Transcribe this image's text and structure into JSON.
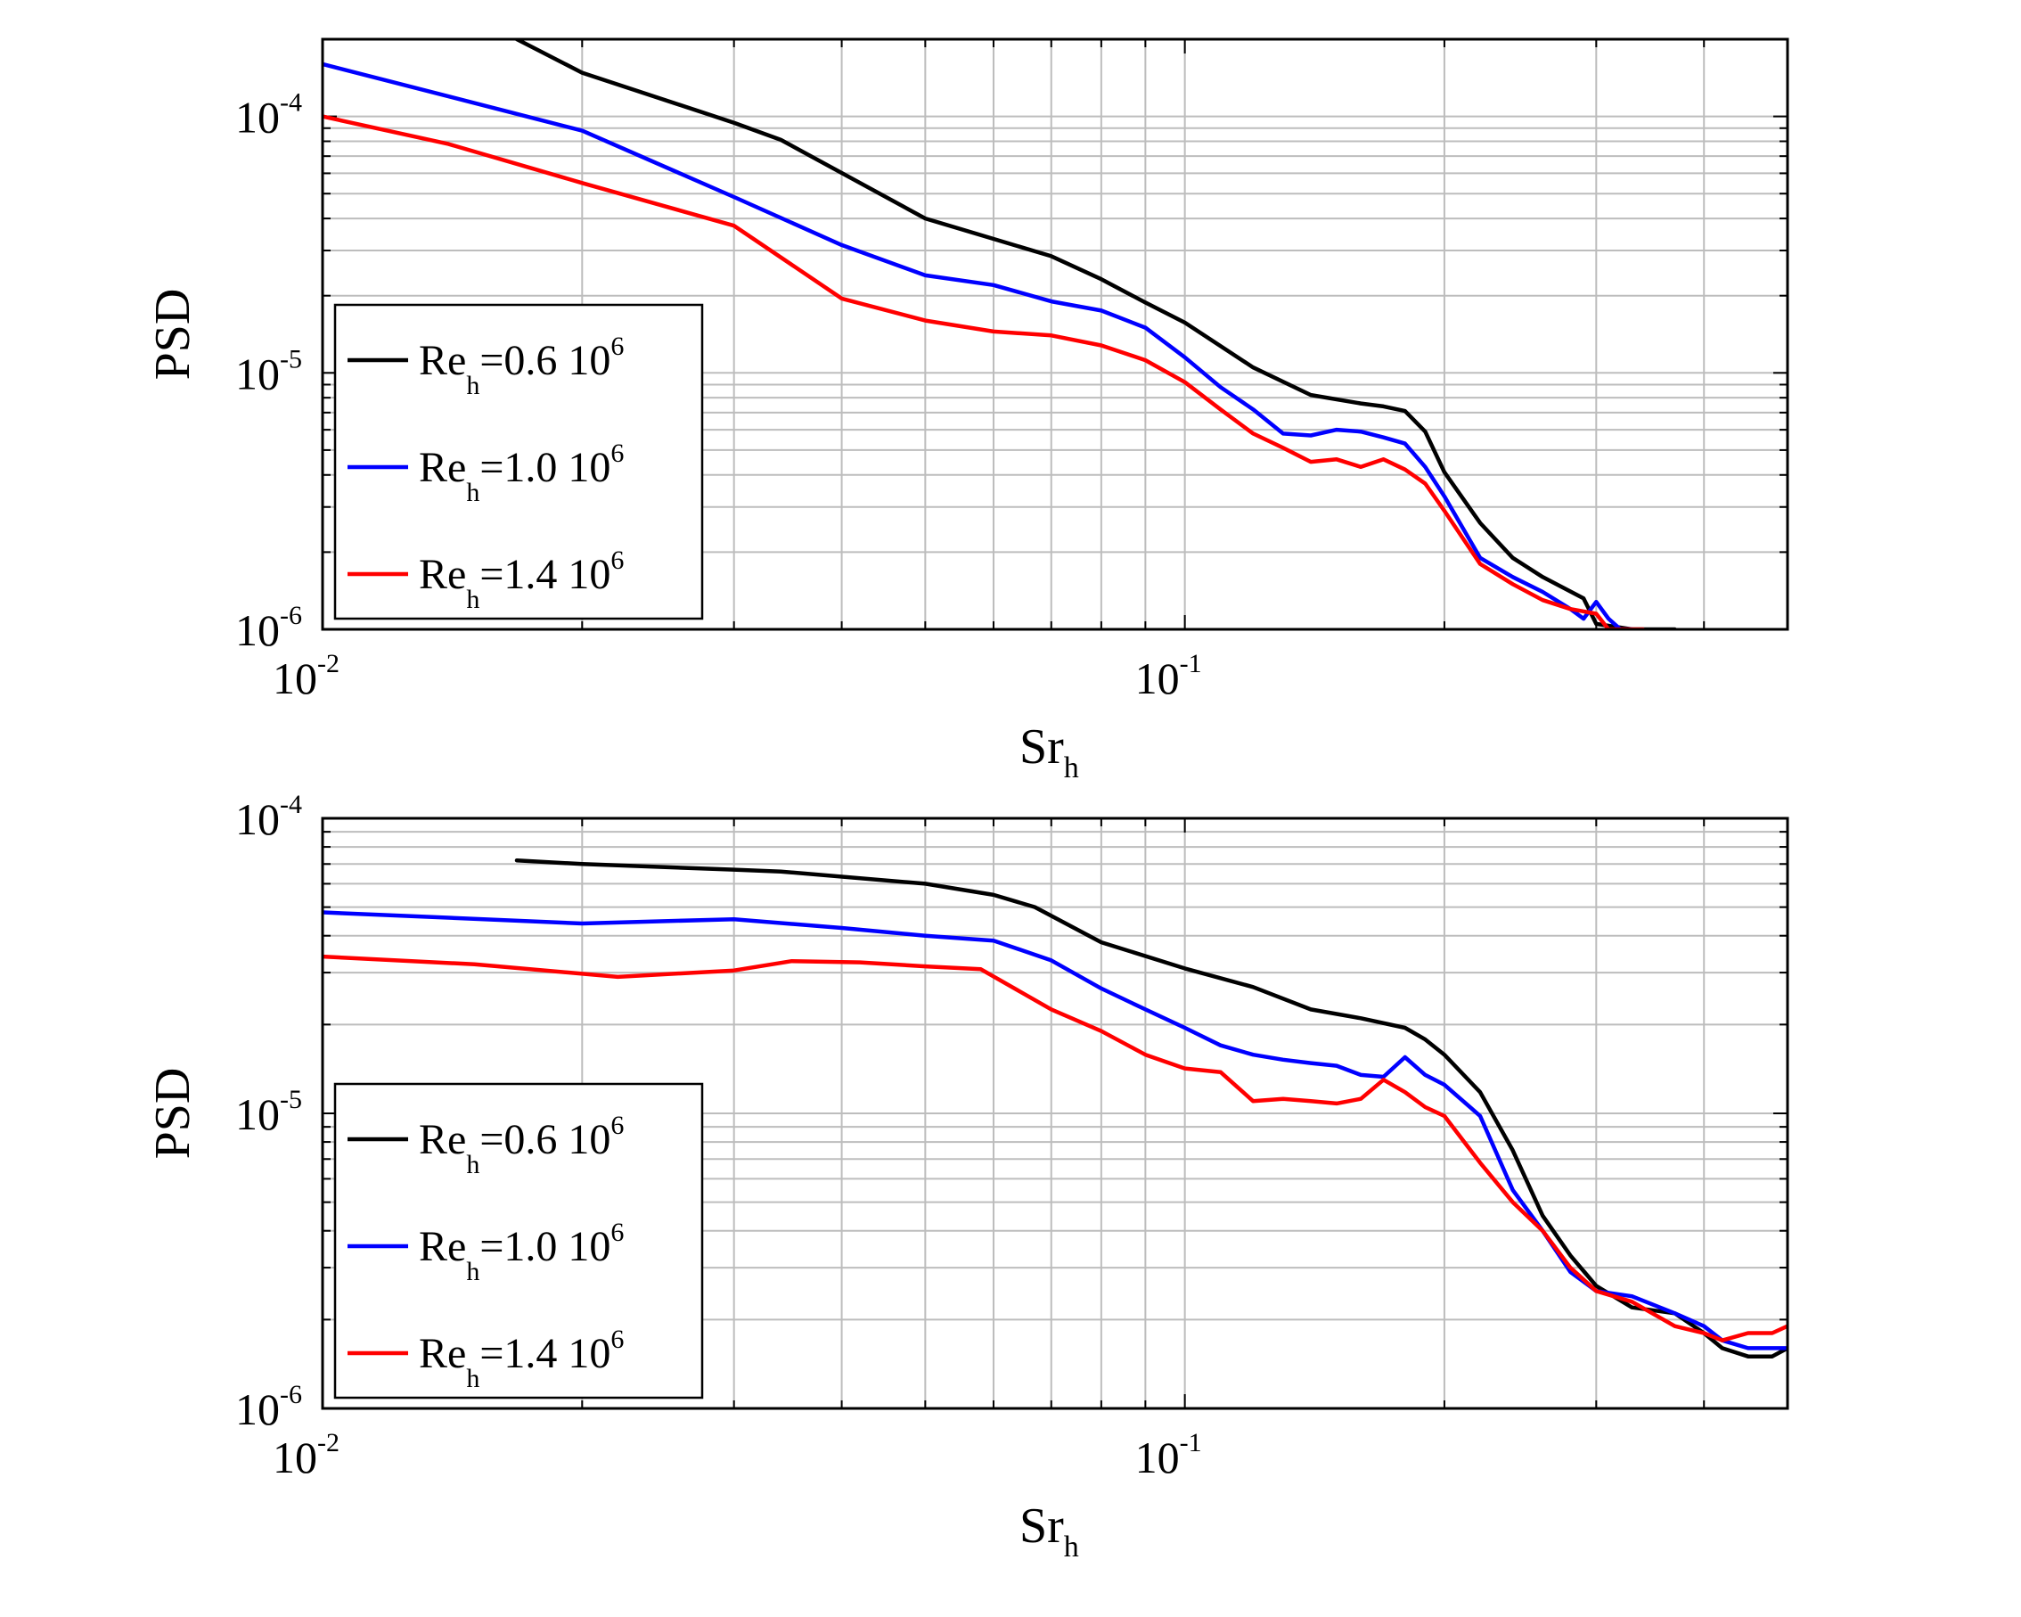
{
  "chart_data": [
    {
      "type": "line",
      "xscale": "log",
      "yscale": "log",
      "xlim": [
        0.01,
        0.5
      ],
      "ylim": [
        1e-06,
        0.0002
      ],
      "xlabel": "Sr",
      "xlabel_sub": "h",
      "ylabel": "PSD",
      "grid": true,
      "legend": "bottom-left",
      "xticks": [
        {
          "value": 0.01,
          "base": "10",
          "exp": "-2"
        },
        {
          "value": 0.1,
          "base": "10",
          "exp": "-1"
        }
      ],
      "yticks": [
        {
          "value": 0.0001,
          "base": "10",
          "exp": "-4"
        },
        {
          "value": 1e-05,
          "base": "10",
          "exp": "-5"
        },
        {
          "value": 1e-06,
          "base": "10",
          "exp": "-6"
        }
      ],
      "series": [
        {
          "name": "Re_h=0.6 10^6",
          "label_main": "Re",
          "label_sub": "h",
          "label_rest": "=0.6 10",
          "label_sup": "6",
          "color": "#000000",
          "x": [
            0.0168,
            0.02,
            0.03,
            0.034,
            0.05,
            0.07,
            0.08,
            0.09,
            0.1,
            0.12,
            0.14,
            0.16,
            0.17,
            0.18,
            0.19,
            0.2,
            0.22,
            0.24,
            0.26,
            0.29,
            0.3,
            0.33,
            0.37
          ],
          "y": [
            0.0002,
            0.000148,
            9.45e-05,
            8.1e-05,
            4e-05,
            2.85e-05,
            2.32e-05,
            1.88e-05,
            1.57e-05,
            1.05e-05,
            8.2e-06,
            7.6e-06,
            7.4e-06,
            7.1e-06,
            5.9e-06,
            4.1e-06,
            2.6e-06,
            1.9e-06,
            1.6e-06,
            1.32e-06,
            1.05e-06,
            1e-06,
            1e-06
          ]
        },
        {
          "name": "Re_h=1.0 10^6",
          "label_main": "Re",
          "label_sub": "h",
          "label_rest": "=1.0 10",
          "label_sup": "6",
          "color": "#0000ff",
          "x": [
            0.01,
            0.02,
            0.03,
            0.04,
            0.05,
            0.06,
            0.07,
            0.08,
            0.09,
            0.1,
            0.11,
            0.12,
            0.13,
            0.14,
            0.15,
            0.16,
            0.17,
            0.18,
            0.19,
            0.2,
            0.22,
            0.24,
            0.26,
            0.28,
            0.29,
            0.3,
            0.31,
            0.32,
            0.33
          ],
          "y": [
            0.00016,
            8.8e-05,
            4.85e-05,
            3.15e-05,
            2.4e-05,
            2.2e-05,
            1.9e-05,
            1.75e-05,
            1.5e-05,
            1.15e-05,
            8.8e-06,
            7.2e-06,
            5.8e-06,
            5.7e-06,
            6e-06,
            5.9e-06,
            5.6e-06,
            5.3e-06,
            4.3e-06,
            3.3e-06,
            1.9e-06,
            1.6e-06,
            1.4e-06,
            1.2e-06,
            1.1e-06,
            1.28e-06,
            1.1e-06,
            1e-06,
            1e-06
          ]
        },
        {
          "name": "Re_h=1.4 10^6",
          "label_main": "Re",
          "label_sub": "h",
          "label_rest": "=1.4 10",
          "label_sup": "6",
          "color": "#ff0000",
          "x": [
            0.01,
            0.014,
            0.02,
            0.03,
            0.04,
            0.05,
            0.06,
            0.07,
            0.08,
            0.09,
            0.1,
            0.11,
            0.12,
            0.13,
            0.14,
            0.15,
            0.16,
            0.17,
            0.18,
            0.19,
            0.2,
            0.22,
            0.24,
            0.26,
            0.28,
            0.3,
            0.31,
            0.32,
            0.33,
            0.34
          ],
          "y": [
            0.0001,
            7.8e-05,
            5.5e-05,
            3.75e-05,
            1.95e-05,
            1.6e-05,
            1.45e-05,
            1.4e-05,
            1.28e-05,
            1.12e-05,
            9.2e-06,
            7.2e-06,
            5.8e-06,
            5.1e-06,
            4.5e-06,
            4.6e-06,
            4.3e-06,
            4.6e-06,
            4.2e-06,
            3.7e-06,
            2.9e-06,
            1.8e-06,
            1.5e-06,
            1.3e-06,
            1.2e-06,
            1.15e-06,
            1e-06,
            1e-06,
            1e-06,
            1e-06
          ]
        }
      ]
    },
    {
      "type": "line",
      "xscale": "log",
      "yscale": "log",
      "xlim": [
        0.01,
        0.5
      ],
      "ylim": [
        1e-06,
        0.0001
      ],
      "xlabel": "Sr",
      "xlabel_sub": "h",
      "ylabel": "PSD",
      "grid": true,
      "legend": "bottom-left",
      "xticks": [
        {
          "value": 0.01,
          "base": "10",
          "exp": "-2"
        },
        {
          "value": 0.1,
          "base": "10",
          "exp": "-1"
        }
      ],
      "yticks": [
        {
          "value": 0.0001,
          "base": "10",
          "exp": "-4"
        },
        {
          "value": 1e-05,
          "base": "10",
          "exp": "-5"
        },
        {
          "value": 1e-06,
          "base": "10",
          "exp": "-6"
        }
      ],
      "series": [
        {
          "name": "Re_h=0.6 10^6",
          "label_main": "Re",
          "label_sub": "h",
          "label_rest": "=0.6 10",
          "label_sup": "6",
          "color": "#000000",
          "x": [
            0.0168,
            0.02,
            0.03,
            0.034,
            0.05,
            0.06,
            0.067,
            0.08,
            0.1,
            0.12,
            0.14,
            0.16,
            0.18,
            0.19,
            0.2,
            0.22,
            0.24,
            0.26,
            0.28,
            0.3,
            0.33,
            0.37,
            0.4,
            0.42,
            0.45,
            0.48,
            0.5
          ],
          "y": [
            7.2e-05,
            7e-05,
            6.7e-05,
            6.6e-05,
            6e-05,
            5.5e-05,
            5e-05,
            3.8e-05,
            3.1e-05,
            2.68e-05,
            2.25e-05,
            2.1e-05,
            1.95e-05,
            1.78e-05,
            1.58e-05,
            1.18e-05,
            7.5e-06,
            4.5e-06,
            3.3e-06,
            2.6e-06,
            2.2e-06,
            2.1e-06,
            1.8e-06,
            1.6e-06,
            1.5e-06,
            1.5e-06,
            1.6e-06
          ]
        },
        {
          "name": "Re_h=1.0 10^6",
          "label_main": "Re",
          "label_sub": "h",
          "label_rest": "=1.0 10",
          "label_sup": "6",
          "color": "#0000ff",
          "x": [
            0.01,
            0.02,
            0.03,
            0.04,
            0.05,
            0.06,
            0.07,
            0.08,
            0.09,
            0.1,
            0.11,
            0.12,
            0.13,
            0.14,
            0.15,
            0.16,
            0.17,
            0.18,
            0.19,
            0.2,
            0.22,
            0.24,
            0.26,
            0.28,
            0.3,
            0.33,
            0.37,
            0.4,
            0.42,
            0.45,
            0.48,
            0.5
          ],
          "y": [
            4.8e-05,
            4.4e-05,
            4.55e-05,
            4.25e-05,
            4e-05,
            3.85e-05,
            3.3e-05,
            2.65e-05,
            2.25e-05,
            1.95e-05,
            1.7e-05,
            1.58e-05,
            1.52e-05,
            1.48e-05,
            1.45e-05,
            1.35e-05,
            1.33e-05,
            1.55e-05,
            1.35e-05,
            1.25e-05,
            9.8e-06,
            5.5e-06,
            4e-06,
            2.9e-06,
            2.5e-06,
            2.4e-06,
            2.1e-06,
            1.9e-06,
            1.7e-06,
            1.6e-06,
            1.6e-06,
            1.6e-06
          ]
        },
        {
          "name": "Re_h=1.4 10^6",
          "label_main": "Re",
          "label_sub": "h",
          "label_rest": "=1.4 10",
          "label_sup": "6",
          "color": "#ff0000",
          "x": [
            0.01,
            0.015,
            0.022,
            0.03,
            0.035,
            0.042,
            0.05,
            0.058,
            0.07,
            0.08,
            0.09,
            0.1,
            0.11,
            0.12,
            0.13,
            0.14,
            0.15,
            0.16,
            0.17,
            0.18,
            0.19,
            0.2,
            0.22,
            0.24,
            0.26,
            0.28,
            0.3,
            0.33,
            0.37,
            0.4,
            0.42,
            0.45,
            0.48,
            0.5
          ],
          "y": [
            3.4e-05,
            3.2e-05,
            2.9e-05,
            3.05e-05,
            3.28e-05,
            3.25e-05,
            3.15e-05,
            3.08e-05,
            2.25e-05,
            1.9e-05,
            1.58e-05,
            1.42e-05,
            1.38e-05,
            1.1e-05,
            1.12e-05,
            1.1e-05,
            1.08e-05,
            1.12e-05,
            1.3e-05,
            1.18e-05,
            1.05e-05,
            9.8e-06,
            6.8e-06,
            5e-06,
            4e-06,
            3e-06,
            2.5e-06,
            2.3e-06,
            1.9e-06,
            1.8e-06,
            1.7e-06,
            1.8e-06,
            1.8e-06,
            1.9e-06
          ]
        }
      ]
    }
  ]
}
